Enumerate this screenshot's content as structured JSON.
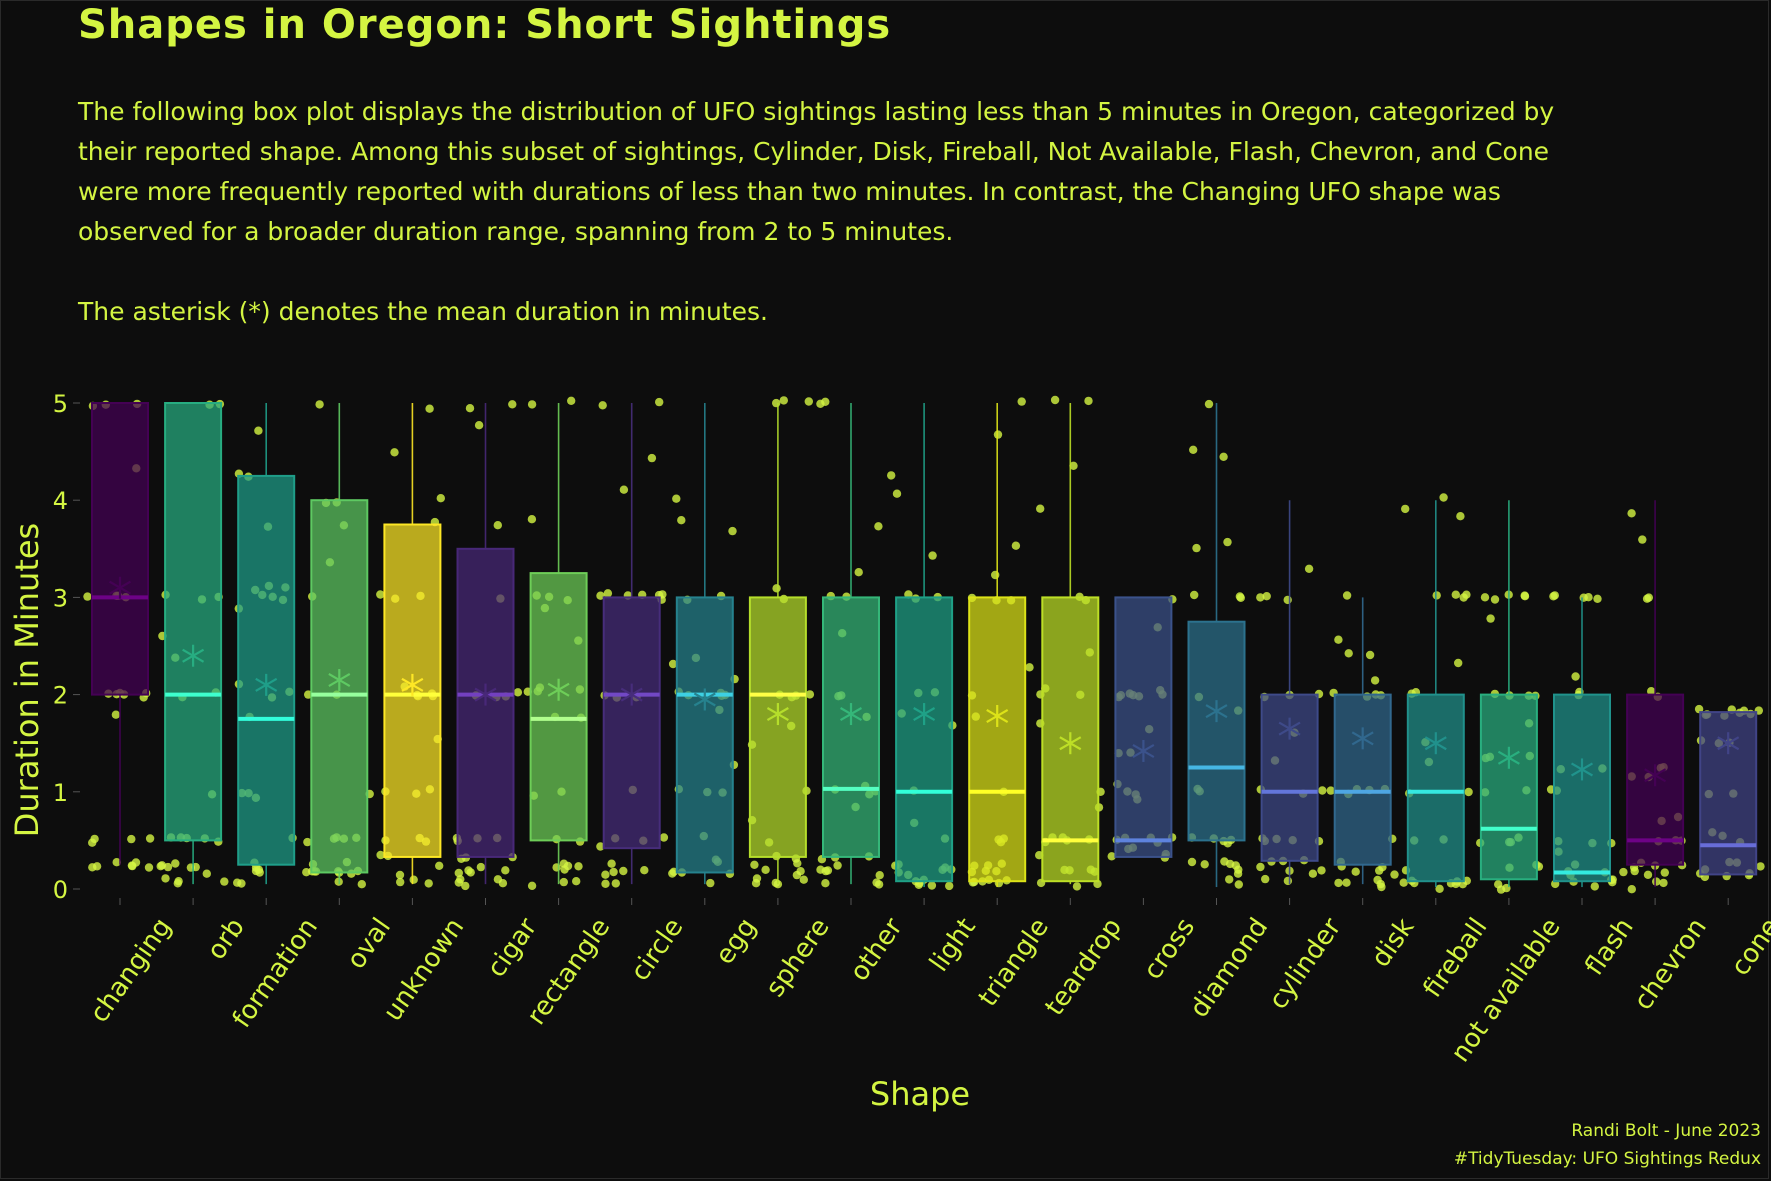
{
  "colors": {
    "background": "#0d0d0d",
    "text": "#d4f542",
    "points": "#d4f542"
  },
  "chart_data": {
    "type": "box",
    "title": "Shapes in Oregon: Short Sightings",
    "subtitle": "The following box plot displays the distribution of UFO sightings lasting less than 5 minutes in Oregon, categorized by\ntheir reported shape. Among this subset of sightings, Cylinder, Disk, Fireball, Not Available, Flash, Chevron, and Cone\nwere more frequently reported with durations of less than two minutes. In contrast, the Changing UFO shape was\nobserved for a broader duration range, spanning from 2 to 5 minutes.\n\nThe asterisk (*) denotes the mean duration in minutes.",
    "xlabel": "Shape",
    "ylabel": "Duration in Minutes",
    "ylim": [
      0,
      5
    ],
    "yticks": [
      "0",
      "1",
      "2",
      "3",
      "4",
      "5"
    ],
    "mean_marker": "*",
    "grid": false,
    "legend": "none",
    "categories": [
      "changing",
      "orb",
      "formation",
      "oval",
      "unknown",
      "cigar",
      "rectangle",
      "circle",
      "egg",
      "sphere",
      "other",
      "light",
      "triangle",
      "teardrop",
      "cross",
      "diamond",
      "cylinder",
      "disk",
      "fireball",
      "not available",
      "flash",
      "chevron",
      "cone"
    ],
    "boxes": [
      {
        "shape": "changing",
        "min": 0.25,
        "q1": 2,
        "median": 3,
        "q3": 5,
        "max": 5,
        "mean": 3.1,
        "color": "#440154"
      },
      {
        "shape": "orb",
        "min": 0.05,
        "q1": 0.5,
        "median": 2,
        "q3": 5,
        "max": 5,
        "mean": 2.4,
        "color": "#27ad81"
      },
      {
        "shape": "formation",
        "min": 0.05,
        "q1": 0.25,
        "median": 1.75,
        "q3": 4.25,
        "max": 5,
        "mean": 2.1,
        "color": "#1f9e89"
      },
      {
        "shape": "oval",
        "min": 0.05,
        "q1": 0.17,
        "median": 2,
        "q3": 4,
        "max": 5,
        "mean": 2.15,
        "color": "#5ec962"
      },
      {
        "shape": "unknown",
        "min": 0.05,
        "q1": 0.33,
        "median": 2,
        "q3": 3.75,
        "max": 5,
        "mean": 2.1,
        "color": "#fde725"
      },
      {
        "shape": "cigar",
        "min": 0.05,
        "q1": 0.33,
        "median": 2,
        "q3": 3.5,
        "max": 5,
        "mean": 2.0,
        "color": "#482878"
      },
      {
        "shape": "rectangle",
        "min": 0.05,
        "q1": 0.5,
        "median": 1.75,
        "q3": 3.25,
        "max": 5,
        "mean": 2.05,
        "color": "#6ece58"
      },
      {
        "shape": "circle",
        "min": 0.05,
        "q1": 0.42,
        "median": 2,
        "q3": 3,
        "max": 5,
        "mean": 2.0,
        "color": "#472d7b"
      },
      {
        "shape": "egg",
        "min": 0.05,
        "q1": 0.17,
        "median": 2,
        "q3": 3,
        "max": 5,
        "mean": 1.95,
        "color": "#26828e"
      },
      {
        "shape": "sphere",
        "min": 0.05,
        "q1": 0.33,
        "median": 2,
        "q3": 3,
        "max": 5,
        "mean": 1.8,
        "color": "#b5de2b"
      },
      {
        "shape": "other",
        "min": 0.05,
        "q1": 0.33,
        "median": 1.03,
        "q3": 3,
        "max": 5,
        "mean": 1.8,
        "color": "#35b779"
      },
      {
        "shape": "light",
        "min": 0.02,
        "q1": 0.08,
        "median": 1,
        "q3": 3,
        "max": 5,
        "mean": 1.8,
        "color": "#1fa187"
      },
      {
        "shape": "triangle",
        "min": 0.02,
        "q1": 0.08,
        "median": 1,
        "q3": 3,
        "max": 5,
        "mean": 1.78,
        "color": "#dde318"
      },
      {
        "shape": "teardrop",
        "min": 0.05,
        "q1": 0.08,
        "median": 0.5,
        "q3": 3,
        "max": 5,
        "mean": 1.5,
        "color": "#bddf26"
      },
      {
        "shape": "cross",
        "min": 0.33,
        "q1": 0.33,
        "median": 0.5,
        "q3": 3,
        "max": 3,
        "mean": 1.42,
        "color": "#3b528b"
      },
      {
        "shape": "diamond",
        "min": 0.02,
        "q1": 0.5,
        "median": 1.25,
        "q3": 2.75,
        "max": 5,
        "mean": 1.83,
        "color": "#2c728e"
      },
      {
        "shape": "cylinder",
        "min": 0.05,
        "q1": 0.29,
        "median": 1,
        "q3": 2,
        "max": 4,
        "mean": 1.65,
        "color": "#3e4a89"
      },
      {
        "shape": "disk",
        "min": 0.05,
        "q1": 0.25,
        "median": 1,
        "q3": 2,
        "max": 3,
        "mean": 1.55,
        "color": "#31688e"
      },
      {
        "shape": "fireball",
        "min": 0.02,
        "q1": 0.08,
        "median": 1,
        "q3": 2,
        "max": 4,
        "mean": 1.5,
        "color": "#21918c"
      },
      {
        "shape": "not available",
        "min": 0.02,
        "q1": 0.1,
        "median": 0.62,
        "q3": 2,
        "max": 4,
        "mean": 1.35,
        "color": "#29af7f"
      },
      {
        "shape": "flash",
        "min": 0.02,
        "q1": 0.08,
        "median": 0.17,
        "q3": 2,
        "max": 3,
        "mean": 1.23,
        "color": "#20938c"
      },
      {
        "shape": "chevron",
        "min": 0.02,
        "q1": 0.25,
        "median": 0.5,
        "q3": 2,
        "max": 4,
        "mean": 1.17,
        "color": "#440154"
      },
      {
        "shape": "cone",
        "min": 0.15,
        "q1": 0.15,
        "median": 0.45,
        "q3": 1.82,
        "max": 1.82,
        "mean": 1.5,
        "color": "#414487"
      }
    ]
  },
  "caption": {
    "line1": "Randi Bolt - June 2023",
    "line2": "#TidyTuesday: UFO Sightings Redux"
  }
}
